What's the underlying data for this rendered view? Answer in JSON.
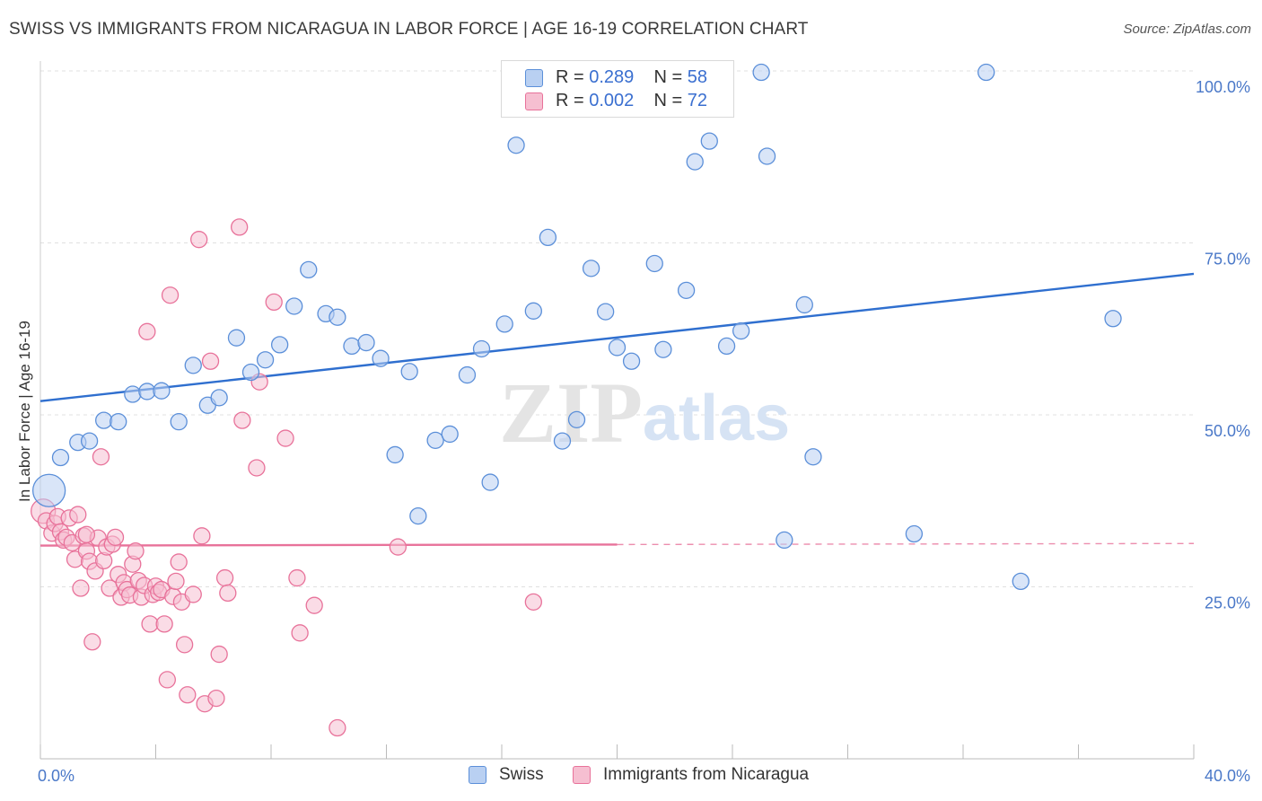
{
  "title": "SWISS VS IMMIGRANTS FROM NICARAGUA IN LABOR FORCE | AGE 16-19 CORRELATION CHART",
  "source": "Source: ZipAtlas.com",
  "colors": {
    "swiss": "#5b8fd9",
    "swiss_fill": "#b9d0f2",
    "nicaragua": "#e8729a",
    "nicaragua_fill": "#f6bfd1",
    "axis_text": "#4a78c8",
    "grid": "#e0e0e0"
  },
  "legend": {
    "r_label": "R =",
    "n_label": "N =",
    "swiss": {
      "r": "0.289",
      "n": "58"
    },
    "nicaragua": {
      "r": "0.002",
      "n": "72"
    }
  },
  "bottom_legend": {
    "swiss": "Swiss",
    "nicaragua": "Immigrants from Nicaragua"
  },
  "chart_data": {
    "type": "scatter",
    "title": "SWISS VS IMMIGRANTS FROM NICARAGUA IN LABOR FORCE | AGE 16-19 CORRELATION CHART",
    "xlabel": "",
    "ylabel": "In Labor Force | Age 16-19",
    "xlim": [
      0,
      40
    ],
    "ylim": [
      0,
      100
    ],
    "x_tick_labels": [
      "0.0%",
      "40.0%"
    ],
    "y_ticks": [
      25,
      50,
      75,
      100
    ],
    "y_tick_labels": [
      "25.0%",
      "50.0%",
      "75.0%",
      "100.0%"
    ],
    "grid": true,
    "legend_placement": "top-center",
    "series": [
      {
        "name": "Swiss",
        "r": 0.289,
        "n": 58,
        "trend": {
          "x": [
            0,
            40
          ],
          "y": [
            52,
            70.5
          ],
          "extrapolated_from": null
        },
        "points": [
          [
            0.3,
            39.0,
            2.0
          ],
          [
            0.7,
            43.8,
            1
          ],
          [
            1.3,
            46.0,
            1
          ],
          [
            1.7,
            46.2,
            1
          ],
          [
            2.2,
            49.2,
            1
          ],
          [
            2.7,
            49.0,
            1
          ],
          [
            3.2,
            53.0,
            1
          ],
          [
            3.7,
            53.4,
            1
          ],
          [
            4.2,
            53.5,
            1
          ],
          [
            4.8,
            49.0,
            1
          ],
          [
            5.3,
            57.2,
            1
          ],
          [
            5.8,
            51.4,
            1
          ],
          [
            6.2,
            52.5,
            1
          ],
          [
            6.8,
            61.2,
            1
          ],
          [
            7.3,
            56.2,
            1
          ],
          [
            7.8,
            58.0,
            1
          ],
          [
            8.3,
            60.2,
            1
          ],
          [
            8.8,
            65.8,
            1
          ],
          [
            9.3,
            71.1,
            1
          ],
          [
            9.9,
            64.7,
            1
          ],
          [
            10.3,
            64.2,
            1
          ],
          [
            10.8,
            60.0,
            1
          ],
          [
            11.3,
            60.5,
            1
          ],
          [
            11.8,
            58.2,
            1
          ],
          [
            12.3,
            44.2,
            1
          ],
          [
            12.8,
            56.3,
            1
          ],
          [
            13.1,
            35.3,
            1
          ],
          [
            13.7,
            46.3,
            1
          ],
          [
            14.2,
            47.2,
            1
          ],
          [
            14.8,
            55.8,
            1
          ],
          [
            15.3,
            59.6,
            1
          ],
          [
            15.6,
            40.2,
            1
          ],
          [
            16.1,
            63.2,
            1
          ],
          [
            16.5,
            89.2,
            1
          ],
          [
            17.1,
            65.1,
            1
          ],
          [
            17.6,
            75.8,
            1
          ],
          [
            18.1,
            46.2,
            1
          ],
          [
            18.6,
            49.3,
            1
          ],
          [
            19.1,
            71.3,
            1
          ],
          [
            19.6,
            65.0,
            1
          ],
          [
            20.0,
            59.8,
            1
          ],
          [
            20.5,
            57.8,
            1
          ],
          [
            21.3,
            72.0,
            1
          ],
          [
            21.6,
            59.5,
            1
          ],
          [
            22.4,
            68.1,
            1
          ],
          [
            22.7,
            86.8,
            1
          ],
          [
            23.2,
            89.8,
            1
          ],
          [
            23.8,
            60.0,
            1
          ],
          [
            24.3,
            62.2,
            1
          ],
          [
            25.0,
            99.8,
            1
          ],
          [
            25.2,
            87.6,
            1
          ],
          [
            25.8,
            31.8,
            1
          ],
          [
            26.5,
            66.0,
            1
          ],
          [
            26.8,
            43.9,
            1
          ],
          [
            30.3,
            32.7,
            1
          ],
          [
            32.8,
            99.8,
            1
          ],
          [
            34.0,
            25.8,
            1
          ],
          [
            37.2,
            64.0,
            1
          ]
        ]
      },
      {
        "name": "Immigrants from Nicaragua",
        "r": 0.002,
        "n": 72,
        "trend": {
          "x": [
            0,
            40
          ],
          "y": [
            31.0,
            31.3
          ],
          "solid_until_x": 20
        },
        "points": [
          [
            0.1,
            36.0,
            1.5
          ],
          [
            0.2,
            34.6,
            1
          ],
          [
            0.4,
            32.8,
            1
          ],
          [
            0.5,
            34.2,
            1
          ],
          [
            0.6,
            35.2,
            1
          ],
          [
            0.7,
            33.0,
            1
          ],
          [
            0.8,
            31.8,
            1
          ],
          [
            0.9,
            32.2,
            1
          ],
          [
            1.0,
            35.0,
            1
          ],
          [
            1.1,
            31.4,
            1
          ],
          [
            1.2,
            29.0,
            1
          ],
          [
            1.3,
            35.5,
            1
          ],
          [
            1.4,
            24.8,
            1
          ],
          [
            1.5,
            32.4,
            1
          ],
          [
            1.6,
            30.2,
            1
          ],
          [
            1.7,
            28.7,
            1
          ],
          [
            1.8,
            17.0,
            1
          ],
          [
            1.9,
            27.3,
            1
          ],
          [
            2.0,
            32.1,
            1
          ],
          [
            2.1,
            43.9,
            1
          ],
          [
            2.2,
            28.8,
            1
          ],
          [
            2.3,
            30.8,
            1
          ],
          [
            2.4,
            24.8,
            1
          ],
          [
            2.5,
            31.2,
            1
          ],
          [
            2.6,
            32.2,
            1
          ],
          [
            2.7,
            26.8,
            1
          ],
          [
            2.8,
            23.5,
            1
          ],
          [
            2.9,
            25.6,
            1
          ],
          [
            3.0,
            24.6,
            1
          ],
          [
            3.1,
            23.8,
            1
          ],
          [
            3.2,
            28.3,
            1
          ],
          [
            3.3,
            30.2,
            1
          ],
          [
            3.4,
            25.9,
            1
          ],
          [
            3.5,
            23.5,
            1
          ],
          [
            3.6,
            25.2,
            1
          ],
          [
            3.7,
            62.1,
            1
          ],
          [
            3.8,
            19.6,
            1
          ],
          [
            3.9,
            23.9,
            1
          ],
          [
            4.0,
            25.1,
            1
          ],
          [
            4.1,
            24.2,
            1
          ],
          [
            4.2,
            24.6,
            1
          ],
          [
            4.3,
            19.6,
            1
          ],
          [
            4.4,
            11.5,
            1
          ],
          [
            4.5,
            67.4,
            1
          ],
          [
            4.6,
            23.6,
            1
          ],
          [
            4.7,
            25.8,
            1
          ],
          [
            4.8,
            28.6,
            1
          ],
          [
            4.9,
            22.8,
            1
          ],
          [
            5.0,
            16.6,
            1
          ],
          [
            5.1,
            9.3,
            1
          ],
          [
            5.3,
            23.9,
            1
          ],
          [
            5.5,
            75.5,
            1
          ],
          [
            5.6,
            32.4,
            1
          ],
          [
            5.7,
            8.0,
            1
          ],
          [
            5.9,
            57.8,
            1
          ],
          [
            6.1,
            8.8,
            1
          ],
          [
            6.2,
            15.2,
            1
          ],
          [
            6.4,
            26.3,
            1
          ],
          [
            6.5,
            24.1,
            1
          ],
          [
            6.9,
            77.3,
            1
          ],
          [
            7.0,
            49.2,
            1
          ],
          [
            7.5,
            42.3,
            1
          ],
          [
            7.6,
            54.8,
            1
          ],
          [
            8.1,
            66.4,
            1
          ],
          [
            8.5,
            46.6,
            1
          ],
          [
            8.9,
            26.3,
            1
          ],
          [
            9.0,
            18.3,
            1
          ],
          [
            9.5,
            22.3,
            1
          ],
          [
            10.3,
            4.5,
            1
          ],
          [
            12.4,
            30.8,
            1
          ],
          [
            17.1,
            22.8,
            1
          ],
          [
            1.6,
            32.6,
            1
          ]
        ]
      }
    ]
  }
}
